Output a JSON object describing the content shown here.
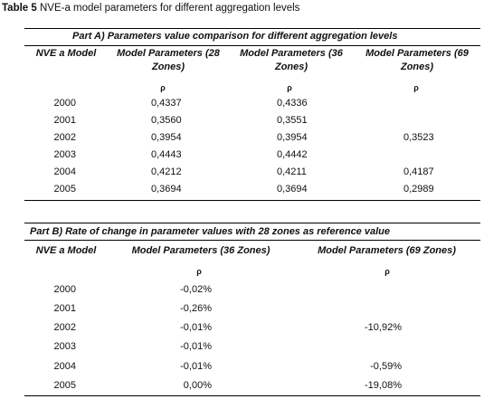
{
  "caption": {
    "label": "Table 5",
    "text": "NVE-a model parameters for different aggregation levels"
  },
  "part_a": {
    "title": "Part A) Parameters value comparison for different aggregation levels",
    "headers": {
      "col1": "NVE a Model",
      "col2": "Model Parameters (28 Zones)",
      "col3": "Model Parameters (36 Zones)",
      "col4": "Model Parameters (69 Zones)"
    },
    "symbol": "ρ",
    "rows": [
      {
        "year": "2000",
        "z28": "0,4337",
        "z36": "0,4336",
        "z69": ""
      },
      {
        "year": "2001",
        "z28": "0,3560",
        "z36": "0,3551",
        "z69": ""
      },
      {
        "year": "2002",
        "z28": "0,3954",
        "z36": "0,3954",
        "z69": "0,3523"
      },
      {
        "year": "2003",
        "z28": "0,4443",
        "z36": "0,4442",
        "z69": ""
      },
      {
        "year": "2004",
        "z28": "0,4212",
        "z36": "0,4211",
        "z69": "0,4187"
      },
      {
        "year": "2005",
        "z28": "0,3694",
        "z36": "0,3694",
        "z69": "0,2989"
      }
    ]
  },
  "part_b": {
    "title": "Part B) Rate of change in parameter values with 28 zones as reference value",
    "headers": {
      "col1": "NVE a Model",
      "col2": "Model Parameters (36 Zones)",
      "col3": "Model Parameters (69 Zones)"
    },
    "symbol": "ρ",
    "rows": [
      {
        "year": "2000",
        "z36": "-0,02%",
        "z69": ""
      },
      {
        "year": "2001",
        "z36": "-0,26%",
        "z69": ""
      },
      {
        "year": "2002",
        "z36": "-0,01%",
        "z69": "-10,92%"
      },
      {
        "year": "2003",
        "z36": "-0,01%",
        "z69": ""
      },
      {
        "year": "2004",
        "z36": "-0,01%",
        "z69": "-0,59%"
      },
      {
        "year": "2005",
        "z36": "0,00%",
        "z69": "-19,08%"
      }
    ]
  }
}
